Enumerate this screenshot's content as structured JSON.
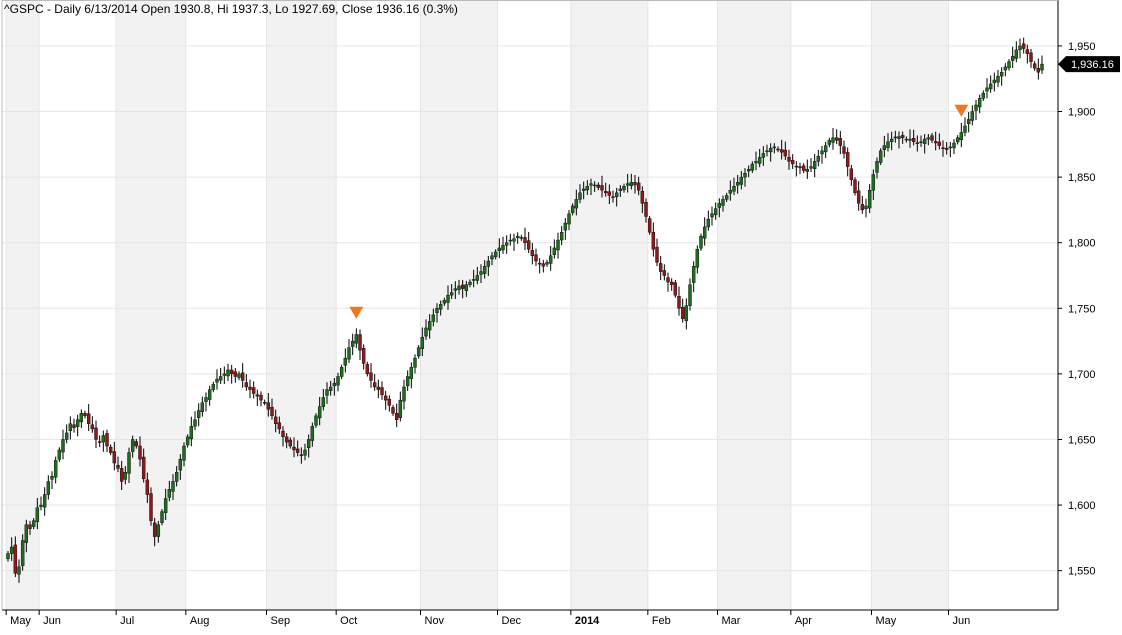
{
  "header": {
    "title": "^GSPC - Daily 6/13/2014 Open 1930.8, Hi 1937.3, Lo 1927.69, Close 1936.16 (0.3%)"
  },
  "last_price_label": "1,936.16",
  "colors": {
    "up": "#1f6b1f",
    "down": "#8b1a1a",
    "wick": "#000000",
    "signal": "#f07820",
    "grid": "#e6e6e6",
    "band": "#f2f2f2",
    "axis": "#000000",
    "price_tag_bg": "#000000",
    "price_tag_text": "#ffffff"
  },
  "chart_data": {
    "type": "candlestick",
    "title": "^GSPC - Daily 6/13/2014 Open 1930.8, Hi 1937.3, Lo 1927.69, Close 1936.16 (0.3%)",
    "xlabel": "",
    "ylabel": "",
    "ylim": [
      1520,
      1985
    ],
    "y_ticks": [
      1550,
      1600,
      1650,
      1700,
      1750,
      1800,
      1850,
      1900,
      1950
    ],
    "y_tick_labels": [
      "1,550",
      "1,600",
      "1,650",
      "1,700",
      "1,750",
      "1,800",
      "1,850",
      "1,900",
      "1,950"
    ],
    "x_tick_labels": [
      "May",
      "Jun",
      "Jul",
      "Aug",
      "Sep",
      "Oct",
      "Nov",
      "Dec",
      "2014",
      "Feb",
      "Mar",
      "Apr",
      "May",
      "Jun"
    ],
    "month_start_index": [
      0,
      9,
      30,
      49,
      71,
      90,
      113,
      134,
      154,
      175,
      194,
      214,
      236,
      257
    ],
    "grid": true,
    "alternating_month_bands": true,
    "last_close": 1936.16,
    "close": [
      1563,
      1568,
      1548,
      1553,
      1573,
      1585,
      1582,
      1588,
      1598,
      1600,
      1608,
      1618,
      1622,
      1634,
      1642,
      1650,
      1655,
      1662,
      1659,
      1665,
      1670,
      1668,
      1662,
      1658,
      1650,
      1648,
      1653,
      1645,
      1640,
      1632,
      1628,
      1618,
      1625,
      1640,
      1650,
      1645,
      1635,
      1620,
      1608,
      1588,
      1576,
      1585,
      1595,
      1605,
      1612,
      1618,
      1625,
      1635,
      1645,
      1652,
      1660,
      1665,
      1672,
      1678,
      1682,
      1688,
      1692,
      1696,
      1698,
      1700,
      1703,
      1700,
      1698,
      1700,
      1695,
      1690,
      1688,
      1685,
      1683,
      1680,
      1678,
      1673,
      1668,
      1662,
      1658,
      1652,
      1648,
      1645,
      1642,
      1640,
      1638,
      1642,
      1650,
      1660,
      1668,
      1675,
      1682,
      1688,
      1690,
      1693,
      1698,
      1705,
      1712,
      1720,
      1725,
      1730,
      1718,
      1708,
      1700,
      1695,
      1690,
      1688,
      1684,
      1680,
      1676,
      1670,
      1665,
      1680,
      1690,
      1698,
      1705,
      1712,
      1720,
      1728,
      1735,
      1740,
      1745,
      1750,
      1753,
      1756,
      1760,
      1762,
      1765,
      1767,
      1765,
      1768,
      1770,
      1772,
      1775,
      1778,
      1782,
      1786,
      1790,
      1793,
      1796,
      1798,
      1800,
      1802,
      1803,
      1805,
      1804,
      1800,
      1795,
      1790,
      1786,
      1784,
      1782,
      1785,
      1790,
      1796,
      1802,
      1808,
      1815,
      1822,
      1828,
      1833,
      1838,
      1841,
      1843,
      1845,
      1844,
      1842,
      1840,
      1838,
      1836,
      1835,
      1838,
      1841,
      1843,
      1845,
      1846,
      1844,
      1840,
      1830,
      1820,
      1808,
      1795,
      1785,
      1778,
      1775,
      1770,
      1768,
      1760,
      1750,
      1742,
      1752,
      1768,
      1782,
      1795,
      1805,
      1812,
      1818,
      1822,
      1826,
      1830,
      1833,
      1836,
      1840,
      1843,
      1846,
      1850,
      1853,
      1856,
      1860,
      1862,
      1865,
      1868,
      1870,
      1872,
      1873,
      1871,
      1869,
      1866,
      1862,
      1860,
      1858,
      1857,
      1855,
      1856,
      1858,
      1862,
      1866,
      1870,
      1874,
      1878,
      1880,
      1878,
      1874,
      1868,
      1858,
      1848,
      1838,
      1830,
      1825,
      1828,
      1840,
      1852,
      1862,
      1870,
      1874,
      1877,
      1879,
      1880,
      1881,
      1880,
      1879,
      1878,
      1877,
      1876,
      1877,
      1879,
      1880,
      1878,
      1876,
      1874,
      1872,
      1871,
      1873,
      1876,
      1880,
      1884,
      1889,
      1894,
      1900,
      1905,
      1910,
      1914,
      1918,
      1921,
      1924,
      1927,
      1930,
      1934,
      1938,
      1942,
      1947,
      1950,
      1948,
      1944,
      1938,
      1933,
      1930,
      1936.16
    ]
  }
}
